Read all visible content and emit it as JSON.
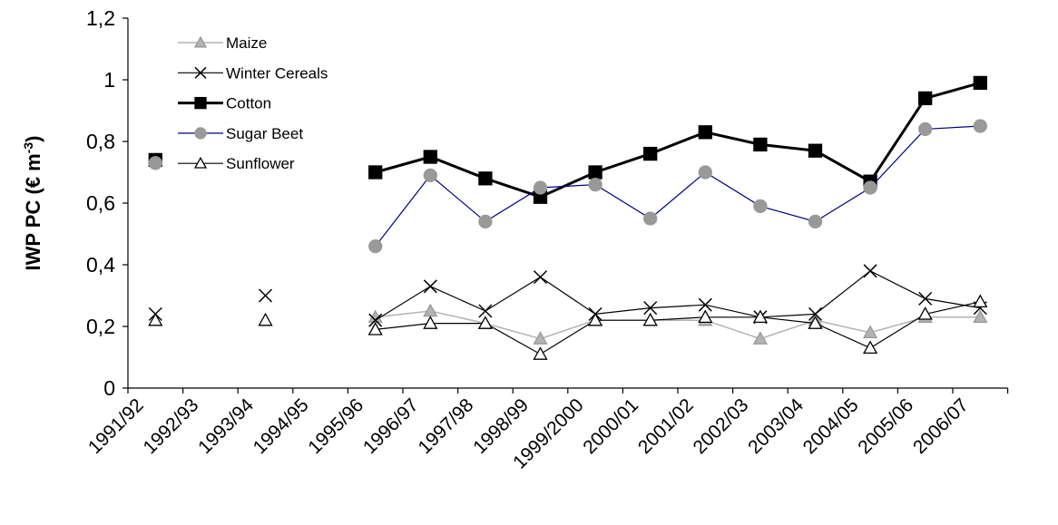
{
  "chart_data": {
    "type": "line",
    "ylabel_parts": [
      "IWP PC (€ m",
      "-3",
      ")"
    ],
    "categories": [
      "1991/92",
      "1992/93",
      "1993/94",
      "1994/95",
      "1995/96",
      "1996/97",
      "1997/98",
      "1998/99",
      "1999/2000",
      "2000/01",
      "2001/02",
      "2002/03",
      "2003/04",
      "2004/05",
      "2005/06",
      "2006/07"
    ],
    "series": [
      {
        "name": "Maize",
        "color": "#b3b3b3",
        "marker": "triangle",
        "marker_fill": "#b3b3b3",
        "marker_stroke": "#999999",
        "line_width": 1.5,
        "values": [
          null,
          null,
          null,
          null,
          0.23,
          0.25,
          0.21,
          0.16,
          0.22,
          0.22,
          0.22,
          0.16,
          0.22,
          0.18,
          0.23,
          0.23
        ]
      },
      {
        "name": "Winter Cereals",
        "color": "#000000",
        "marker": "x",
        "marker_fill": "none",
        "marker_stroke": "#000000",
        "line_width": 1.2,
        "values": [
          0.24,
          null,
          0.3,
          null,
          0.22,
          0.33,
          0.25,
          0.36,
          0.24,
          0.26,
          0.27,
          0.23,
          0.24,
          0.38,
          0.29,
          0.26
        ]
      },
      {
        "name": "Cotton",
        "color": "#000000",
        "marker": "square",
        "marker_fill": "#000000",
        "marker_stroke": "#000000",
        "line_width": 3,
        "values": [
          0.74,
          null,
          null,
          null,
          0.7,
          0.75,
          0.68,
          0.62,
          0.7,
          0.76,
          0.83,
          0.79,
          0.77,
          0.67,
          0.94,
          0.99
        ]
      },
      {
        "name": "Sugar Beet",
        "color": "#000080",
        "marker": "circle",
        "marker_fill": "#999999",
        "marker_stroke": "#999999",
        "line_width": 1.2,
        "values": [
          0.73,
          null,
          null,
          null,
          0.46,
          0.69,
          0.54,
          0.65,
          0.66,
          0.55,
          0.7,
          0.59,
          0.54,
          0.65,
          0.84,
          0.85
        ]
      },
      {
        "name": "Sunflower",
        "color": "#000000",
        "marker": "triangle",
        "marker_fill": "#ffffff",
        "marker_stroke": "#000000",
        "line_width": 1.2,
        "values": [
          0.22,
          null,
          0.22,
          null,
          0.19,
          0.21,
          0.21,
          0.11,
          0.22,
          0.22,
          0.23,
          0.23,
          0.21,
          0.13,
          0.24,
          0.28
        ]
      }
    ],
    "ylim": [
      0,
      1.2
    ],
    "yticks": [
      0,
      {
        "value": 0.2,
        "label": "0,2"
      },
      {
        "value": 0.4,
        "label": "0,4"
      },
      {
        "value": 0.6,
        "label": "0,6"
      },
      {
        "value": 0.8,
        "label": "0,8"
      },
      1,
      {
        "value": 1.2,
        "label": "1,2"
      }
    ],
    "grid": false,
    "legend": "upper-left"
  }
}
